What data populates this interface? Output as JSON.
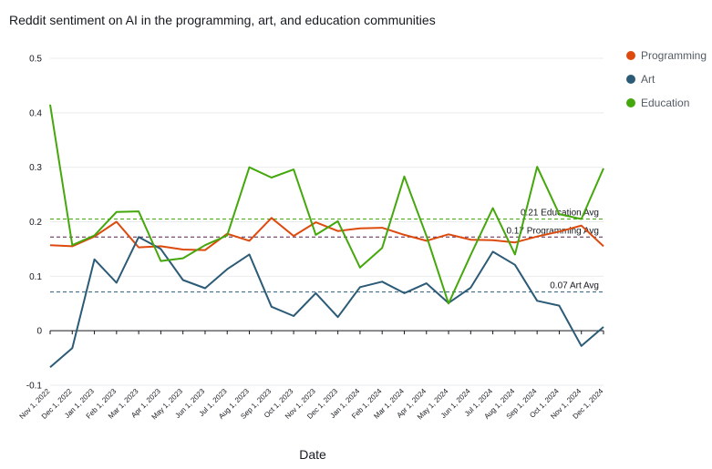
{
  "title": "Reddit sentiment on AI in the programming, art, and education communities",
  "chart_data": {
    "type": "line",
    "title": "Reddit sentiment on AI in the programming, art, and education communities",
    "xlabel": "Date",
    "ylabel": "",
    "ylim": [
      -0.1,
      0.5
    ],
    "yticks": [
      -0.1,
      0,
      0.1,
      0.2,
      0.3,
      0.4,
      0.5
    ],
    "ytick_labels": [
      "-0.1",
      "0",
      "0.1",
      "0.2",
      "0.3",
      "0.4",
      "0.5"
    ],
    "grid": "horizontal",
    "legend_position": "right",
    "x": [
      "Nov 1, 2022",
      "Dec 1, 2022",
      "Jan 1, 2023",
      "Feb 1, 2023",
      "Mar 1, 2023",
      "Apr 1, 2023",
      "May 1, 2023",
      "Jun 1, 2023",
      "Jul 1, 2023",
      "Aug 1, 2023",
      "Sep 1, 2023",
      "Oct 1, 2023",
      "Nov 1, 2023",
      "Dec 1, 2023",
      "Jan 1, 2024",
      "Feb 1, 2024",
      "Mar 1, 2024",
      "Apr 1, 2024",
      "May 1, 2024",
      "Jun 1, 2024",
      "Jul 1, 2024",
      "Aug 1, 2024",
      "Sep 1, 2024",
      "Oct 1, 2024",
      "Nov 1, 2024",
      "Dec 1, 2024"
    ],
    "series": [
      {
        "name": "Programming",
        "color": "#dd4a0e",
        "values": [
          0.157,
          0.155,
          0.173,
          0.2,
          0.153,
          0.155,
          0.149,
          0.148,
          0.178,
          0.165,
          0.207,
          0.174,
          0.199,
          0.183,
          0.188,
          0.189,
          0.176,
          0.165,
          0.177,
          0.167,
          0.166,
          0.162,
          0.173,
          0.182,
          0.193,
          0.155
        ]
      },
      {
        "name": "Art",
        "color": "#2c5b77",
        "values": [
          -0.067,
          -0.032,
          0.131,
          0.088,
          0.172,
          0.15,
          0.093,
          0.078,
          0.113,
          0.14,
          0.044,
          0.027,
          0.069,
          0.025,
          0.08,
          0.09,
          0.069,
          0.087,
          0.051,
          0.079,
          0.145,
          0.121,
          0.055,
          0.046,
          -0.028,
          0.007
        ]
      },
      {
        "name": "Education",
        "color": "#44a70c",
        "values": [
          0.415,
          0.157,
          0.175,
          0.218,
          0.219,
          0.128,
          0.133,
          0.157,
          0.175,
          0.3,
          0.281,
          0.296,
          0.176,
          0.201,
          0.116,
          0.152,
          0.283,
          0.174,
          0.05,
          0.139,
          0.225,
          0.14,
          0.301,
          0.214,
          0.205,
          0.298
        ]
      }
    ],
    "reference_lines": [
      {
        "label": "0.21 Education Avg",
        "value": 0.205,
        "color": "#44a70c"
      },
      {
        "label": "0.17 Programming Avg",
        "value": 0.172,
        "color": "#5b1f4a"
      },
      {
        "label": "0.07 Art Avg",
        "value": 0.071,
        "color": "#2c5b77"
      }
    ]
  }
}
